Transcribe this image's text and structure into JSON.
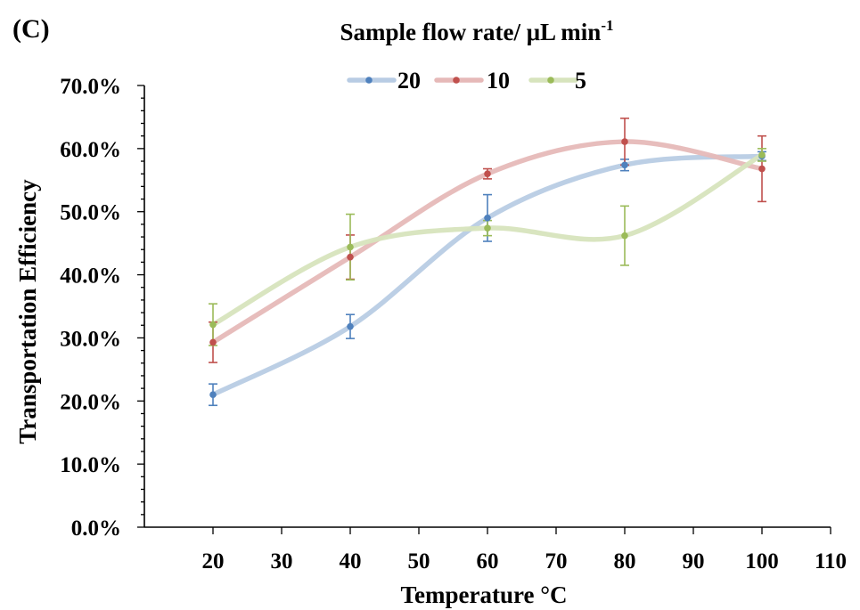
{
  "chart_data": {
    "type": "line",
    "panel_label": "(C)",
    "legend_title": "Sample flow rate/ μL min",
    "legend_title_superscript": "-1",
    "legend_position": "top-center",
    "xlabel": "Temperature °C",
    "ylabel": "Transportation Efficiency",
    "xlim": [
      10,
      110
    ],
    "ylim": [
      0,
      0.7
    ],
    "x_ticks": [
      20,
      30,
      40,
      50,
      60,
      70,
      80,
      90,
      100,
      110
    ],
    "x_tick_labels": [
      "20",
      "30",
      "40",
      "50",
      "60",
      "70",
      "80",
      "90",
      "100",
      "110"
    ],
    "y_ticks": [
      0,
      0.1,
      0.2,
      0.3,
      0.4,
      0.5,
      0.6,
      0.7
    ],
    "y_tick_labels": [
      "0.0%",
      "10.0%",
      "20.0%",
      "30.0%",
      "40.0%",
      "50.0%",
      "60.0%",
      "70.0%"
    ],
    "grid": false,
    "smooth_lines": true,
    "x": [
      20,
      40,
      60,
      80,
      100
    ],
    "series": [
      {
        "name": "20",
        "line_color": "#b8cce4",
        "marker_color": "#4f81bd",
        "values": [
          0.21,
          0.318,
          0.49,
          0.574,
          0.588
        ],
        "errors": [
          0.017,
          0.019,
          0.037,
          0.009,
          0.007
        ]
      },
      {
        "name": "10",
        "line_color": "#e6b9b8",
        "marker_color": "#c0504d",
        "values": [
          0.293,
          0.428,
          0.56,
          0.611,
          0.568
        ],
        "errors": [
          0.032,
          0.035,
          0.008,
          0.037,
          0.052
        ]
      },
      {
        "name": "5",
        "line_color": "#d7e4bd",
        "marker_color": "#9bbb59",
        "values": [
          0.321,
          0.444,
          0.474,
          0.462,
          0.59
        ],
        "errors": [
          0.033,
          0.052,
          0.012,
          0.047,
          0.01
        ]
      }
    ]
  }
}
